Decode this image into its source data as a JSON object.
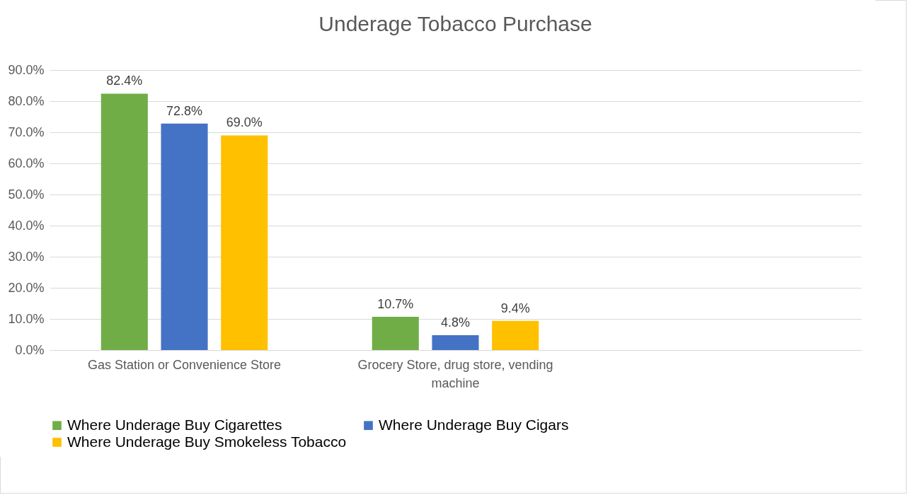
{
  "chart_data": {
    "type": "bar",
    "title": "Underage Tobacco Purchase",
    "categories": [
      "Gas Station or Convenience Store",
      "Grocery Store, drug store, vending machine",
      null
    ],
    "series": [
      {
        "name": "Where Underage Buy Cigarettes",
        "color": "#70ad47",
        "values": [
          82.4,
          10.7,
          null
        ],
        "value_labels": [
          "82.4%",
          "10.7%",
          null
        ]
      },
      {
        "name": "Where Underage Buy Cigars",
        "color": "#4472c4",
        "values": [
          72.8,
          4.8,
          null
        ],
        "value_labels": [
          "72.8%",
          "4.8%",
          null
        ]
      },
      {
        "name": "Where Underage Buy Smokeless Tobacco",
        "color": "#ffc000",
        "values": [
          69.0,
          9.4,
          null
        ],
        "value_labels": [
          "69.0%",
          "9.4%",
          null
        ]
      }
    ],
    "ylim": [
      0,
      90
    ],
    "yticks": [
      {
        "value": 0,
        "label": "0.0%"
      },
      {
        "value": 10,
        "label": "10.0%"
      },
      {
        "value": 20,
        "label": "20.0%"
      },
      {
        "value": 30,
        "label": "30.0%"
      },
      {
        "value": 40,
        "label": "40.0%"
      },
      {
        "value": 50,
        "label": "50.0%"
      },
      {
        "value": 60,
        "label": "60.0%"
      },
      {
        "value": 70,
        "label": "70.0%"
      },
      {
        "value": 80,
        "label": "80.0%"
      },
      {
        "value": 90,
        "label": "90.0%"
      }
    ],
    "grid": "y",
    "legend": "bottom"
  }
}
